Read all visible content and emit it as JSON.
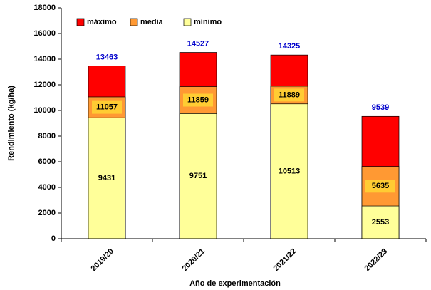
{
  "chart_data": {
    "type": "bar",
    "overlap": true,
    "x_label": "Año de experimentación",
    "y_label": "Rendimiento (kg/ha)",
    "categories": [
      "2019/20",
      "2020/21",
      "2021/22",
      "2022/23"
    ],
    "series": [
      {
        "name": "máximo",
        "color": "#ff0000",
        "values": [
          13463,
          14527,
          14325,
          9539
        ]
      },
      {
        "name": "media",
        "color": "#ff9933",
        "values": [
          11057,
          11859,
          11889,
          5635
        ]
      },
      {
        "name": "mínimo",
        "color": "#ffff99",
        "values": [
          9431,
          9751,
          10513,
          2553
        ]
      }
    ],
    "ylim": [
      0,
      18000
    ],
    "yticks": [
      0,
      2000,
      4000,
      6000,
      8000,
      10000,
      12000,
      14000,
      16000,
      18000
    ],
    "grid": false,
    "legend": "top-left"
  }
}
